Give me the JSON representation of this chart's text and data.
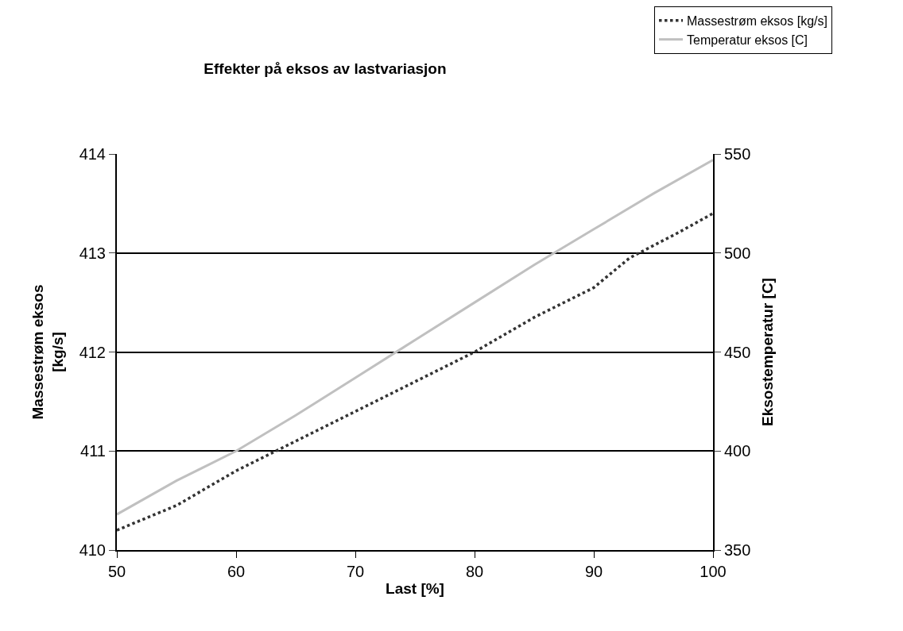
{
  "chart_data": {
    "type": "line",
    "title": "Effekter på eksos av lastvariasjon",
    "xlabel": "Last [%]",
    "ylabel": "Massestrøm eksos\n[kg/s]",
    "y2label": "Eksostemperatur [C]",
    "x": [
      50,
      55,
      60,
      65,
      70,
      75,
      80,
      85,
      90,
      93,
      97,
      100
    ],
    "series": [
      {
        "name": "Massestrøm eksos [kg/s]",
        "color": "#333333",
        "line_style": "dotted",
        "values": [
          410.2,
          410.45,
          410.8,
          411.1,
          411.4,
          411.7,
          412.0,
          412.35,
          412.65,
          412.95,
          413.2,
          413.4
        ]
      },
      {
        "name": "Temperatur eksos [C]",
        "color": "#c0c0c0",
        "line_style": "solid",
        "axis": "y2",
        "x": [
          50,
          55,
          60,
          65,
          70,
          75,
          80,
          85,
          90,
          95,
          100
        ],
        "values": [
          368,
          385,
          400,
          418,
          437,
          456,
          475,
          494,
          512,
          530,
          547
        ]
      }
    ],
    "xlim": [
      50,
      100
    ],
    "xticks": [
      50,
      60,
      70,
      80,
      90,
      100
    ],
    "ylim": [
      410,
      414
    ],
    "yticks": [
      410,
      411,
      412,
      413,
      414
    ],
    "y2lim": [
      350,
      550
    ],
    "y2ticks": [
      350,
      400,
      450,
      500,
      550
    ],
    "grid": "y",
    "legend": "top right",
    "marker": "none"
  }
}
